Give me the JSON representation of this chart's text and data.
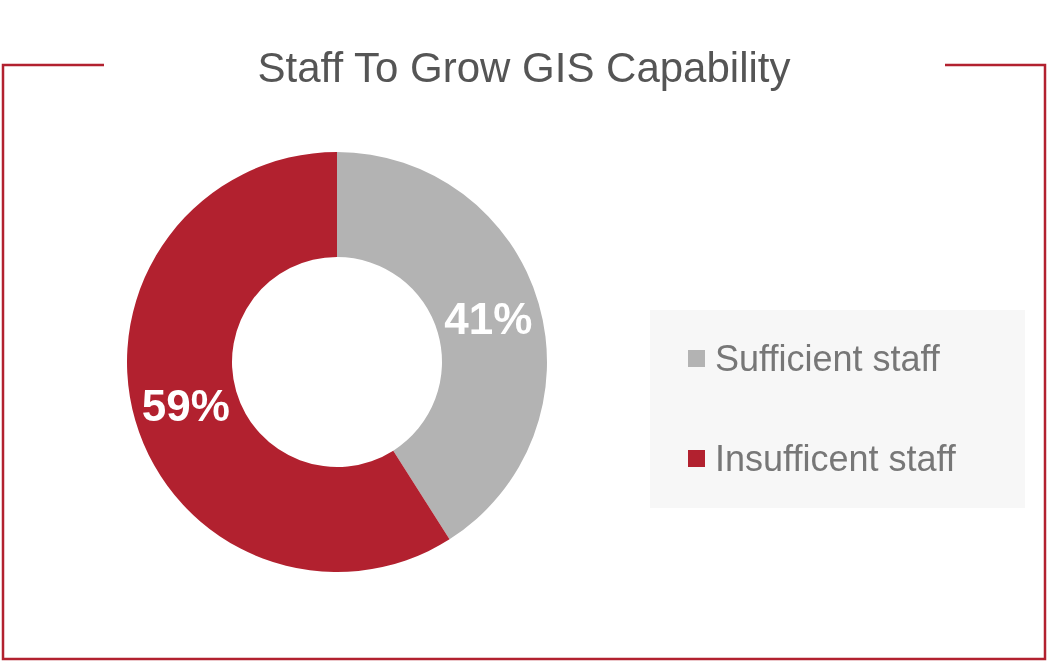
{
  "chart_data": {
    "type": "donut",
    "title": "Staff To Grow GIS Capability",
    "categories": [
      "Sufficient staff",
      "Insufficent staff"
    ],
    "values": [
      41,
      59
    ],
    "colors": [
      "#b3b3b3",
      "#b2212f"
    ],
    "value_labels": [
      "41%",
      "59%"
    ],
    "legend": "right"
  }
}
